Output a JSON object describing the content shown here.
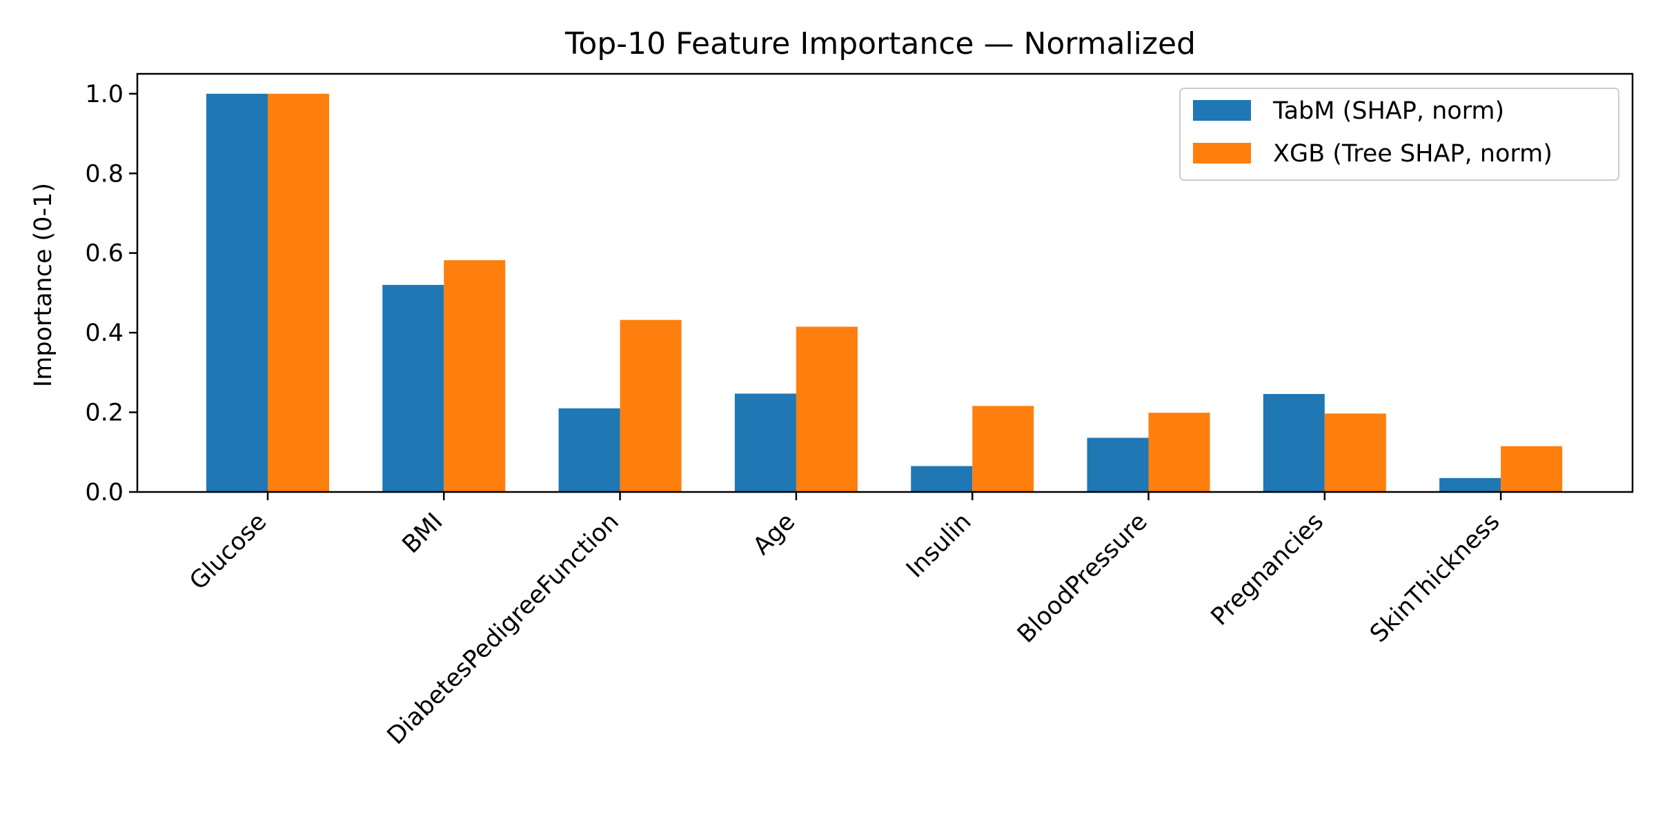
{
  "chart_data": {
    "type": "bar",
    "title": "Top-10 Feature Importance — Normalized",
    "xlabel": "",
    "ylabel": "Importance (0-1)",
    "ylim": [
      0,
      1.05
    ],
    "yticks": [
      "0.0",
      "0.2",
      "0.4",
      "0.6",
      "0.8",
      "1.0"
    ],
    "categories": [
      "Glucose",
      "BMI",
      "DiabetesPedigreeFunction",
      "Age",
      "Insulin",
      "BloodPressure",
      "Pregnancies",
      "SkinThickness"
    ],
    "series": [
      {
        "name": "TabM (SHAP, norm)",
        "color": "#1f77b4",
        "values": [
          1.0,
          0.52,
          0.21,
          0.247,
          0.065,
          0.136,
          0.246,
          0.035
        ]
      },
      {
        "name": "XGB (Tree SHAP, norm)",
        "color": "#ff7f0e",
        "values": [
          1.0,
          0.582,
          0.432,
          0.415,
          0.216,
          0.199,
          0.197,
          0.115
        ]
      }
    ],
    "legend_position": "top-right",
    "grid": false
  }
}
